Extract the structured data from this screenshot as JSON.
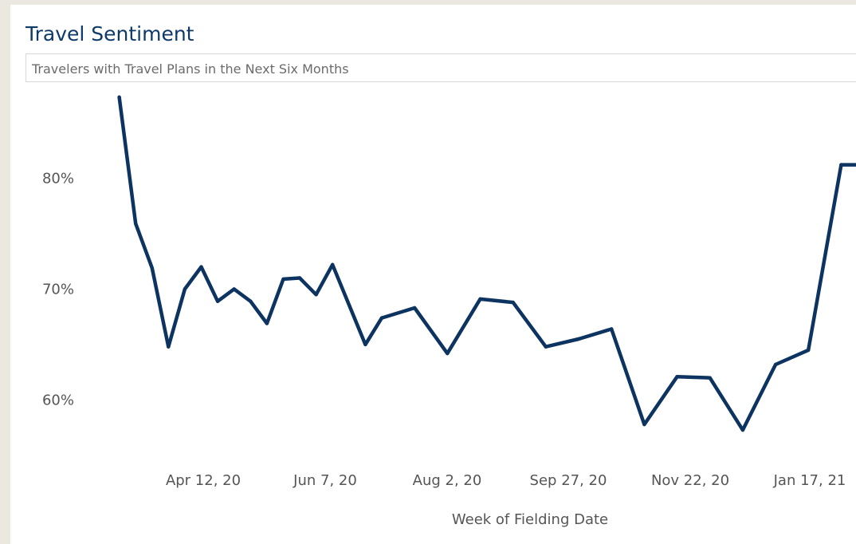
{
  "header": {
    "title": "Travel Sentiment",
    "subtitle": "Travelers with Travel Plans in the Next Six Months"
  },
  "colors": {
    "line": "#0d3461",
    "title": "#0f3a68"
  },
  "chart_data": {
    "type": "line",
    "title": "Travel Sentiment",
    "subtitle": "Travelers with Travel Plans in the Next Six Months",
    "xlabel": "Week of Fielding Date",
    "ylabel": "",
    "x_tick_labels": [
      "Apr 12, 20",
      "Jun 7, 20",
      "Aug 2, 20",
      "Sep 27, 20",
      "Nov 22, 20",
      "Jan 17, 21"
    ],
    "y_tick_labels": [
      "60%",
      "70%",
      "80%"
    ],
    "y_ticks": [
      60,
      70,
      80
    ],
    "ylim": [
      54.5,
      88
    ],
    "xlim": [
      "2020-03-08",
      "2021-01-24"
    ],
    "grid": false,
    "series": [
      {
        "name": "",
        "x": [
          "2020-03-15",
          "2020-03-22",
          "2020-03-29",
          "2020-04-05",
          "2020-04-12",
          "2020-04-19",
          "2020-04-26",
          "2020-05-03",
          "2020-05-10",
          "2020-05-17",
          "2020-05-24",
          "2020-05-31",
          "2020-06-07",
          "2020-06-14",
          "2020-06-28",
          "2020-07-05",
          "2020-07-19",
          "2020-08-02",
          "2020-08-16",
          "2020-08-30",
          "2020-09-13",
          "2020-09-27",
          "2020-10-11",
          "2020-10-25",
          "2020-11-08",
          "2020-11-22",
          "2020-12-06",
          "2020-12-20",
          "2021-01-03",
          "2021-01-17",
          "2021-01-24",
          "2021-01-31"
        ],
        "values": [
          87.3,
          75.9,
          71.9,
          64.8,
          70.0,
          72.0,
          68.9,
          70.0,
          68.9,
          66.9,
          70.9,
          71.0,
          69.5,
          72.2,
          65.0,
          67.4,
          68.3,
          64.2,
          69.1,
          68.8,
          64.8,
          65.5,
          66.4,
          57.8,
          62.1,
          62.0,
          57.3,
          63.2,
          64.5,
          81.2,
          81.2,
          81.2
        ]
      }
    ]
  }
}
